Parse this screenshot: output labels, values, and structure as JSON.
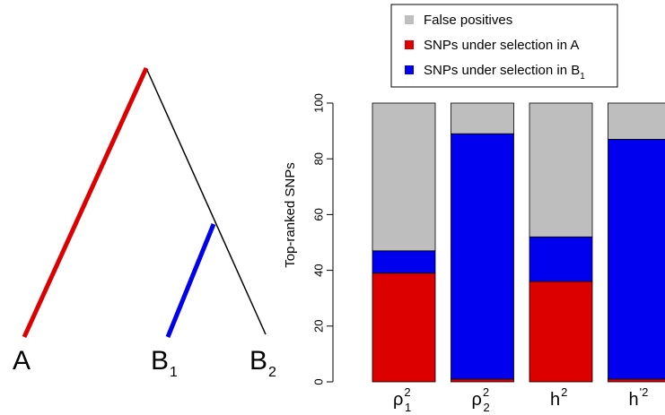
{
  "tree": {
    "leaves": [
      {
        "name": "A",
        "sub": ""
      },
      {
        "name": "B",
        "sub": "1"
      },
      {
        "name": "B",
        "sub": "2"
      }
    ],
    "colors": {
      "branch_a": "#dd0000",
      "branch_b1": "#0000ee",
      "other": "#000000"
    }
  },
  "chart_data": {
    "type": "bar",
    "stacked": true,
    "categories": [
      {
        "base": "ρ",
        "sub": "1",
        "sup": "2"
      },
      {
        "base": "ρ",
        "sub": "2",
        "sup": "2"
      },
      {
        "base": "h",
        "sub": "",
        "sup": "2"
      },
      {
        "base": "h",
        "sub": "",
        "sup": "'2"
      }
    ],
    "series": [
      {
        "name": "SNPs under selection in A",
        "color": "#dd0000",
        "values": [
          39,
          1,
          36,
          1
        ]
      },
      {
        "name": "SNPs under selection in B",
        "name_sub": "1",
        "color": "#0000ee",
        "values": [
          8,
          88,
          16,
          86
        ]
      },
      {
        "name": "False positives",
        "color": "#bebebe",
        "values": [
          53,
          11,
          48,
          13
        ]
      }
    ],
    "legend_order": [
      2,
      0,
      1
    ],
    "legend_position": "top",
    "ylabel": "Top-ranked SNPs",
    "ylim": [
      0,
      100
    ],
    "yticks": [
      0,
      20,
      40,
      60,
      80,
      100
    ],
    "grid": false
  }
}
